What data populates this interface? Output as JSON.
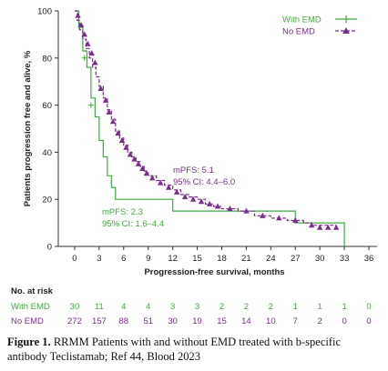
{
  "chart_data": {
    "type": "line",
    "subtype": "kaplan-meier-step",
    "xlabel": "Progression-free survival, months",
    "ylabel": "Patients progression free and alive, %",
    "xlim": [
      -2,
      37
    ],
    "ylim": [
      0,
      100
    ],
    "xticks": [
      "0",
      "3",
      "6",
      "9",
      "12",
      "15",
      "18",
      "21",
      "24",
      "27",
      "30",
      "33",
      "36"
    ],
    "yticks": [
      "0",
      "20",
      "40",
      "60",
      "80",
      "100"
    ],
    "grid": false,
    "legend_position": "top-right",
    "series": [
      {
        "name": "With EMD",
        "color": "#3faa3f",
        "marker": "cross",
        "dashed": false,
        "x": [
          0,
          0.5,
          1.0,
          1.5,
          2.0,
          2.5,
          3.0,
          3.5,
          4.0,
          4.5,
          5.0,
          7.5,
          12.0,
          15.0,
          27.0,
          33.0
        ],
        "y": [
          100,
          93,
          83,
          76,
          63,
          55,
          45,
          38,
          30,
          25,
          20,
          20,
          15,
          15,
          10,
          0
        ],
        "censor_x": [
          1.2,
          2.0
        ],
        "censor_y": [
          80,
          60
        ]
      },
      {
        "name": "No EMD",
        "color": "#7b2d8e",
        "marker": "triangle",
        "dashed": true,
        "x": [
          0,
          0.3,
          0.6,
          1.0,
          1.4,
          1.8,
          2.2,
          2.6,
          3.0,
          3.5,
          4.0,
          4.5,
          5.0,
          5.5,
          6.0,
          6.5,
          7.0,
          7.5,
          8.0,
          8.5,
          9.0,
          10.0,
          11.0,
          12.0,
          13.0,
          14.0,
          15.0,
          16.0,
          17.0,
          18.0,
          20.0,
          22.0,
          24.0,
          26.0,
          28.0,
          29.0,
          32.0
        ],
        "y": [
          100,
          96,
          92,
          88,
          84,
          80,
          76,
          72,
          68,
          63,
          58,
          54,
          49,
          46,
          43,
          40,
          38,
          36,
          34,
          32,
          30,
          28,
          26,
          24,
          22,
          21,
          20,
          18,
          17,
          16,
          15,
          13,
          12,
          11,
          10,
          9,
          8
        ],
        "censor_x": [
          0.4,
          0.8,
          1.2,
          1.6,
          2.1,
          2.5,
          3.2,
          3.8,
          4.2,
          4.7,
          5.3,
          5.8,
          6.3,
          6.8,
          7.3,
          7.8,
          8.3,
          8.8,
          9.5,
          10.5,
          11.5,
          12.5,
          13.5,
          14.5,
          15.5,
          16.5,
          17.5,
          19,
          21,
          23,
          25,
          27,
          29,
          30,
          31,
          32
        ],
        "censor_y": [
          98,
          94,
          90,
          86,
          82,
          78,
          67,
          62,
          57,
          53,
          48,
          45,
          42,
          39,
          37,
          35,
          33,
          31,
          29,
          27,
          25,
          23,
          21,
          20,
          19,
          18,
          17,
          16,
          15,
          13,
          12,
          11,
          9,
          8,
          8,
          8
        ]
      }
    ],
    "annotations": [
      {
        "series": "No EMD",
        "lines": [
          "mPFS: 5.1",
          "95% CI: 4.4–6.0"
        ],
        "color": "#7b2d8e"
      },
      {
        "series": "With EMD",
        "lines": [
          "mPFS: 2.3",
          "95% CI: 1.6–4.4"
        ],
        "color": "#3faa3f"
      }
    ],
    "risk_table": {
      "title": "No. at risk",
      "rows": [
        {
          "label": "With EMD",
          "color": "#3faa3f",
          "values": [
            "30",
            "11",
            "4",
            "4",
            "3",
            "3",
            "2",
            "2",
            "2",
            "1",
            "1",
            "1",
            "0"
          ]
        },
        {
          "label": "No EMD",
          "color": "#7b2d8e",
          "values": [
            "272",
            "157",
            "88",
            "51",
            "30",
            "19",
            "15",
            "14",
            "10",
            "7",
            "2",
            "0",
            "0"
          ]
        }
      ]
    }
  },
  "caption": {
    "label": "Figure 1.",
    "text": " RRMM Patients with and without EMD treated with b-specific antibody Teclistamab; Ref 44, Blood 2023"
  }
}
